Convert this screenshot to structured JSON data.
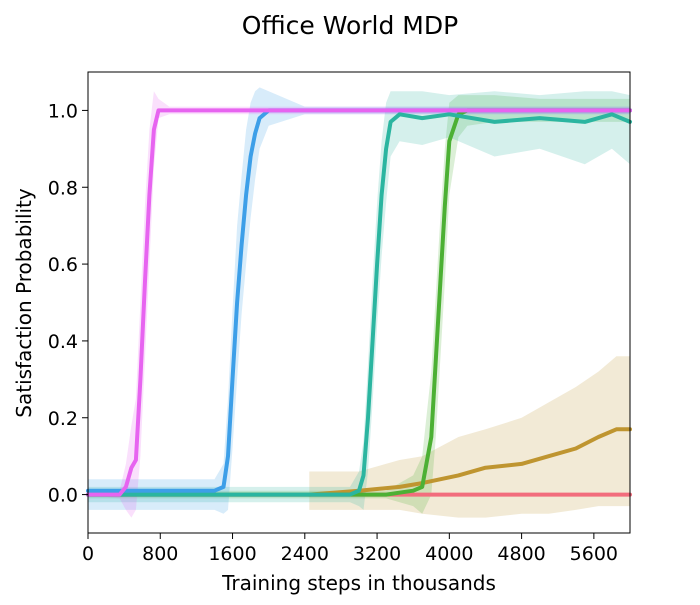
{
  "chart_data": {
    "type": "line",
    "title": "Office World MDP",
    "xlabel": "Training steps in thousands",
    "ylabel": "Satisfaction Probability",
    "xlim": [
      0,
      6000
    ],
    "ylim": [
      -0.1,
      1.1
    ],
    "xticks": [
      0,
      800,
      1600,
      2400,
      3200,
      4000,
      4800,
      5600
    ],
    "xtick_labels": [
      "0",
      "800",
      "1600",
      "2400",
      "3200",
      "4000",
      "4800",
      "5600"
    ],
    "yticks": [
      0.0,
      0.2,
      0.4,
      0.6,
      0.8,
      1.0
    ],
    "ytick_labels": [
      "0.0",
      "0.2",
      "0.4",
      "0.6",
      "0.8",
      "1.0"
    ],
    "grid": false,
    "legend": "none",
    "series": [
      {
        "color": "#f26d7d",
        "x": [
          0,
          6000
        ],
        "y": [
          0.0,
          0.0
        ],
        "band": null
      },
      {
        "color": "#bf9530",
        "x": [
          2450,
          3000,
          3450,
          3700,
          4100,
          4400,
          4800,
          5100,
          5400,
          5650,
          5850,
          6000
        ],
        "y": [
          0.0,
          0.01,
          0.02,
          0.03,
          0.05,
          0.07,
          0.08,
          0.1,
          0.12,
          0.15,
          0.17,
          0.17
        ],
        "band": {
          "upper": [
            0.06,
            0.06,
            0.09,
            0.1,
            0.15,
            0.17,
            0.2,
            0.24,
            0.28,
            0.32,
            0.36,
            0.36
          ],
          "lower": [
            -0.04,
            -0.04,
            -0.04,
            -0.05,
            -0.06,
            -0.06,
            -0.05,
            -0.05,
            -0.04,
            -0.03,
            -0.03,
            -0.03
          ]
        }
      },
      {
        "color": "#4cb034",
        "x": [
          0,
          3300,
          3600,
          3700,
          3800,
          3850,
          3900,
          3950,
          4000,
          4100,
          4200,
          4500,
          5000,
          5500,
          6000
        ],
        "y": [
          0.0,
          0.0,
          0.01,
          0.02,
          0.15,
          0.35,
          0.55,
          0.75,
          0.92,
          0.99,
          1.0,
          1.0,
          1.0,
          1.0,
          1.0
        ],
        "band": {
          "upper": [
            0.01,
            0.01,
            0.05,
            0.1,
            0.32,
            0.52,
            0.72,
            0.9,
            1.02,
            1.04,
            1.04,
            1.04,
            1.03,
            1.03,
            1.03
          ],
          "lower": [
            -0.01,
            -0.01,
            -0.03,
            -0.05,
            0.0,
            0.15,
            0.35,
            0.55,
            0.78,
            0.93,
            0.96,
            0.97,
            0.97,
            0.97,
            0.97
          ]
        }
      },
      {
        "color": "#2bb5a0",
        "x": [
          0,
          2900,
          3000,
          3050,
          3100,
          3150,
          3200,
          3250,
          3300,
          3350,
          3450,
          3700,
          4000,
          4500,
          5000,
          5500,
          5800,
          6000
        ],
        "y": [
          0.0,
          0.0,
          0.01,
          0.05,
          0.2,
          0.4,
          0.6,
          0.78,
          0.9,
          0.97,
          0.99,
          0.98,
          0.99,
          0.97,
          0.98,
          0.97,
          0.99,
          0.97
        ],
        "band": {
          "upper": [
            0.02,
            0.02,
            0.06,
            0.14,
            0.34,
            0.56,
            0.76,
            0.92,
            1.02,
            1.05,
            1.05,
            1.05,
            1.04,
            1.05,
            1.04,
            1.05,
            1.05,
            1.04
          ],
          "lower": [
            -0.02,
            -0.02,
            -0.03,
            -0.04,
            0.06,
            0.24,
            0.44,
            0.62,
            0.76,
            0.88,
            0.92,
            0.91,
            0.93,
            0.88,
            0.9,
            0.86,
            0.9,
            0.86
          ]
        }
      },
      {
        "color": "#3d9fe8",
        "x": [
          0,
          1400,
          1500,
          1550,
          1600,
          1650,
          1700,
          1750,
          1800,
          1850,
          1900,
          2000,
          2400,
          3000,
          3500,
          4000,
          5000,
          6000
        ],
        "y": [
          0.01,
          0.01,
          0.02,
          0.1,
          0.3,
          0.5,
          0.65,
          0.78,
          0.88,
          0.94,
          0.98,
          1.0,
          1.0,
          1.0,
          1.0,
          1.0,
          1.0,
          1.0
        ],
        "band": {
          "upper": [
            0.04,
            0.04,
            0.08,
            0.25,
            0.48,
            0.7,
            0.83,
            0.95,
            1.02,
            1.05,
            1.06,
            1.05,
            1.01,
            1.01,
            1.01,
            1.01,
            1.01,
            1.01
          ],
          "lower": [
            -0.04,
            -0.04,
            -0.05,
            -0.04,
            0.12,
            0.3,
            0.47,
            0.6,
            0.72,
            0.82,
            0.9,
            0.96,
            0.99,
            0.99,
            0.99,
            0.99,
            0.99,
            0.99
          ]
        }
      },
      {
        "color": "#e764f0",
        "x": [
          0,
          350,
          420,
          480,
          530,
          580,
          630,
          680,
          730,
          780,
          900,
          2000,
          3000,
          4000,
          5000,
          6000
        ],
        "y": [
          0.0,
          0.0,
          0.02,
          0.07,
          0.09,
          0.3,
          0.55,
          0.78,
          0.95,
          1.0,
          1.0,
          1.0,
          1.0,
          1.0,
          1.0,
          1.0
        ],
        "band": {
          "upper": [
            0.0,
            0.01,
            0.08,
            0.18,
            0.25,
            0.5,
            0.75,
            0.95,
            1.05,
            1.03,
            1.01,
            1.01,
            1.01,
            1.01,
            1.01,
            1.01
          ],
          "lower": [
            0.0,
            -0.01,
            -0.04,
            -0.06,
            -0.04,
            0.1,
            0.35,
            0.6,
            0.85,
            0.98,
            0.99,
            0.99,
            0.99,
            0.99,
            0.99,
            0.99
          ]
        }
      }
    ]
  }
}
